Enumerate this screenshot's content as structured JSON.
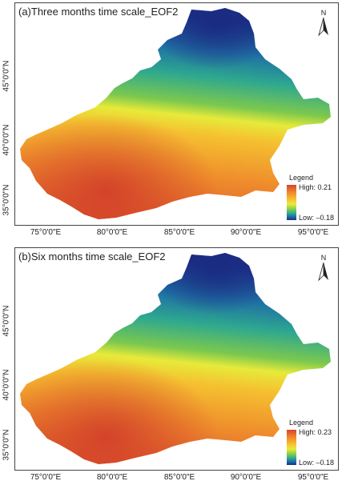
{
  "panels": [
    {
      "id": "a",
      "title": "(a)Three months time scale_EOF2",
      "legend": {
        "title": "Legend",
        "high_label": "High: 0.21",
        "low_label": "Low: –0.18",
        "high": 0.21,
        "low": -0.18
      },
      "north_label": "N"
    },
    {
      "id": "b",
      "title": "(b)Six months time scale_EOF2",
      "legend": {
        "title": "Legend",
        "high_label": "High: 0.23",
        "low_label": "Low: –0.18",
        "high": 0.23,
        "low": -0.18
      },
      "north_label": "N"
    }
  ],
  "x_ticks": [
    "75°0'0\"E",
    "80°0'0\"E",
    "85°0'0\"E",
    "90°0'0\"E",
    "95°0'0\"E"
  ],
  "y_ticks": [
    "45°0'0\"N",
    "40°0'0\"N",
    "35°0'0\"N"
  ],
  "colors": {
    "high": "#d7452b",
    "mid": "#e8ea3a",
    "low": "#1b2e8a",
    "frame": "#444444"
  }
}
